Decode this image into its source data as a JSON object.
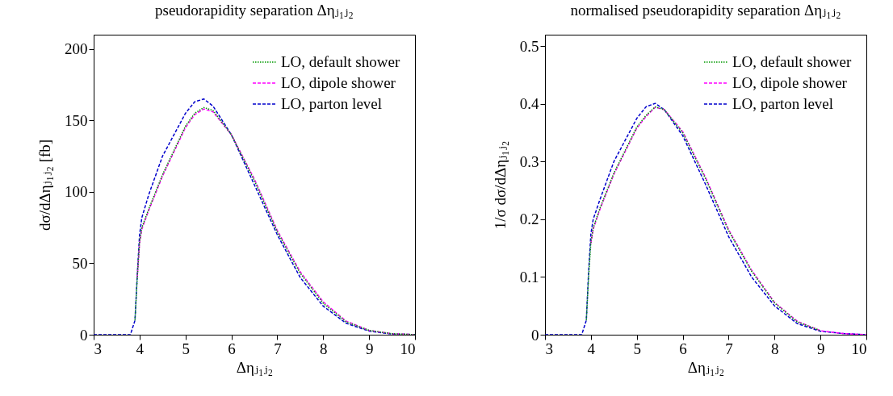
{
  "chart_data": [
    {
      "type": "line",
      "title": "pseudorapidity separation Δηⱼ₁ⱼ₂",
      "xlabel": "Δηⱼ₁ⱼ₂",
      "ylabel": "dσ/dΔηⱼ₁ⱼ₂ [fb]",
      "xlim": [
        3,
        10
      ],
      "xticks": [
        3,
        4,
        5,
        6,
        7,
        8,
        9,
        10
      ],
      "ylim": [
        0,
        210
      ],
      "yticks": [
        0,
        50,
        100,
        150,
        200
      ],
      "grid": false,
      "legend": "top right",
      "x": [
        3,
        3.8,
        3.9,
        3.95,
        4.0,
        4.05,
        4.2,
        4.5,
        5.0,
        5.2,
        5.4,
        5.6,
        6.0,
        6.5,
        7.0,
        7.5,
        8.0,
        8.5,
        9.0,
        9.5,
        10
      ],
      "series": [
        {
          "name": "LO, default shower",
          "color": "#009900",
          "line_style": "dotted",
          "values": [
            null,
            null,
            10,
            40,
            65,
            75,
            88,
            112,
            146,
            155,
            159,
            157,
            140,
            108,
            72,
            43,
            22,
            9,
            3,
            0.7,
            0.1
          ]
        },
        {
          "name": "LO, dipole shower",
          "color": "#ff00ff",
          "line_style": "dashed",
          "values": [
            null,
            null,
            null,
            40,
            64,
            74,
            87,
            111,
            145,
            154,
            158,
            156,
            140,
            109,
            73,
            44,
            23,
            9.5,
            3,
            0.7,
            0.1
          ]
        },
        {
          "name": "LO, parton level",
          "color": "#0000cc",
          "line_style": "dashed",
          "values": [
            0,
            0,
            10,
            42,
            70,
            82,
            98,
            125,
            155,
            163,
            165,
            160,
            140,
            105,
            70,
            40,
            20,
            8,
            2.5,
            0.5,
            0.1
          ]
        }
      ]
    },
    {
      "type": "line",
      "title": "normalised pseudorapidity separation Δηⱼ₁ⱼ₂",
      "xlabel": "Δηⱼ₁ⱼ₂",
      "ylabel": "1/σ dσ/dΔηⱼ₁ⱼ₂",
      "xlim": [
        3,
        10
      ],
      "xticks": [
        3,
        4,
        5,
        6,
        7,
        8,
        9,
        10
      ],
      "ylim": [
        0,
        0.52
      ],
      "yticks": [
        0,
        0.1,
        0.2,
        0.3,
        0.4,
        0.5
      ],
      "grid": false,
      "legend": "top right",
      "x": [
        3,
        3.8,
        3.9,
        3.95,
        4.0,
        4.05,
        4.2,
        4.5,
        5.0,
        5.2,
        5.4,
        5.6,
        6.0,
        6.5,
        7.0,
        7.5,
        8.0,
        8.5,
        9.0,
        9.5,
        10
      ],
      "series": [
        {
          "name": "LO, default shower",
          "color": "#009900",
          "line_style": "dotted",
          "values": [
            null,
            null,
            0.025,
            0.1,
            0.16,
            0.185,
            0.22,
            0.28,
            0.36,
            0.38,
            0.395,
            0.39,
            0.35,
            0.27,
            0.18,
            0.11,
            0.055,
            0.022,
            0.007,
            null,
            null
          ]
        },
        {
          "name": "LO, dipole shower",
          "color": "#ff00ff",
          "line_style": "dashed",
          "values": [
            null,
            null,
            null,
            null,
            0.158,
            0.183,
            0.218,
            0.278,
            0.358,
            0.378,
            0.394,
            0.39,
            0.352,
            0.272,
            0.182,
            0.112,
            0.056,
            0.023,
            0.007,
            0.002,
            0
          ]
        },
        {
          "name": "LO, parton level",
          "color": "#0000cc",
          "line_style": "dashed",
          "values": [
            0,
            0,
            0.025,
            0.11,
            0.175,
            0.2,
            0.235,
            0.3,
            0.375,
            0.395,
            0.401,
            0.39,
            0.345,
            0.26,
            0.17,
            0.1,
            0.05,
            0.019,
            0.006,
            0.002,
            0
          ]
        }
      ]
    }
  ]
}
